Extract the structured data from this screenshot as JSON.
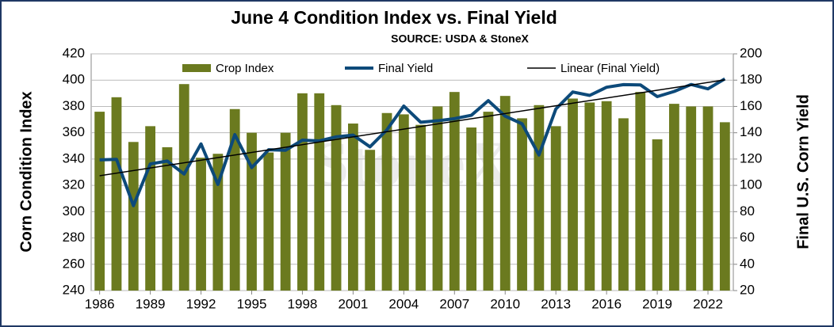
{
  "chart_data": {
    "type": "bar_line",
    "title": "June 4 Condition Index vs. Final Yield",
    "subtitle": "SOURCE: USDA & StoneX",
    "watermark": "StoneX",
    "ylabel": "Corn Condition Index",
    "y2label": "Final U.S. Corn Yield",
    "x": [
      1986,
      1987,
      1988,
      1989,
      1990,
      1991,
      1992,
      1993,
      1994,
      1995,
      1996,
      1997,
      1998,
      1999,
      2000,
      2001,
      2002,
      2003,
      2004,
      2005,
      2006,
      2007,
      2008,
      2009,
      2010,
      2011,
      2012,
      2013,
      2014,
      2015,
      2016,
      2017,
      2018,
      2019,
      2020,
      2021,
      2022,
      2023
    ],
    "xlim": [
      1985.5,
      2023.5
    ],
    "xticks": [
      1986,
      1989,
      1992,
      1995,
      1998,
      2001,
      2004,
      2007,
      2010,
      2013,
      2016,
      2019,
      2022
    ],
    "ylim": [
      240,
      420
    ],
    "yticks": [
      240,
      260,
      280,
      300,
      320,
      340,
      360,
      380,
      400,
      420
    ],
    "y2lim": [
      20,
      200
    ],
    "y2ticks": [
      20,
      40,
      60,
      80,
      100,
      120,
      140,
      160,
      180,
      200
    ],
    "series": [
      {
        "name": "Crop Index",
        "color": "#6b7a1f",
        "type": "bar",
        "values": [
          376,
          387,
          353,
          365,
          349,
          397,
          341,
          344,
          378,
          360,
          345,
          360,
          390,
          390,
          381,
          367,
          347,
          375,
          374,
          366,
          380,
          391,
          364,
          376,
          388,
          371,
          381,
          365,
          386,
          383,
          384,
          371,
          391,
          355,
          382,
          380,
          380,
          368
        ]
      },
      {
        "name": "Final Yield",
        "color": "#0d4a7a",
        "type": "line",
        "axis": "y2",
        "values": [
          119.4,
          119.8,
          84.6,
          116.3,
          118.5,
          108.6,
          131.5,
          100.7,
          138.6,
          113.5,
          127.1,
          126.7,
          134.4,
          133.8,
          136.9,
          138.2,
          129.3,
          142.2,
          160.3,
          148.0,
          149.1,
          150.7,
          153.3,
          164.4,
          152.6,
          146.8,
          123.1,
          158.1,
          171.0,
          168.4,
          174.6,
          176.6,
          176.4,
          167.5,
          171.4,
          176.7,
          173.4,
          181.0
        ]
      },
      {
        "name": "Linear (Final Yield)",
        "color": "#000000",
        "type": "trend",
        "axis": "y2",
        "of": "Final Yield"
      }
    ]
  }
}
